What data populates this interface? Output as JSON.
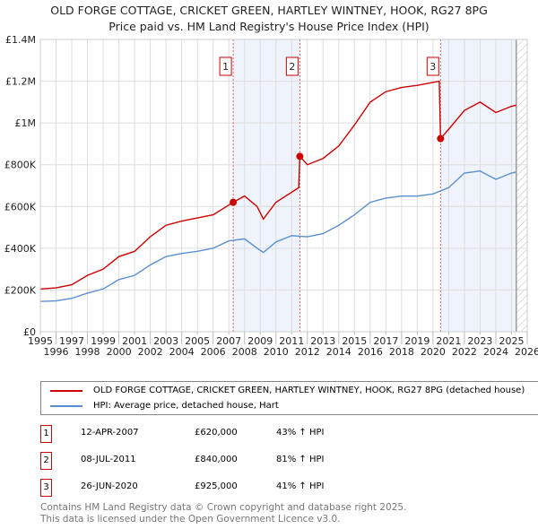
{
  "chart_data": {
    "type": "line",
    "title": "OLD FORGE COTTAGE, CRICKET GREEN, HARTLEY WINTNEY, HOOK, RG27 8PG",
    "subtitle": "Price paid vs. HM Land Registry's House Price Index (HPI)",
    "ylim": [
      0,
      1400000
    ],
    "xlim": [
      1995,
      2026
    ],
    "yticks": [
      {
        "v": 0,
        "label": "£0"
      },
      {
        "v": 200000,
        "label": "£200K"
      },
      {
        "v": 400000,
        "label": "£400K"
      },
      {
        "v": 600000,
        "label": "£600K"
      },
      {
        "v": 800000,
        "label": "£800K"
      },
      {
        "v": 1000000,
        "label": "£1M"
      },
      {
        "v": 1200000,
        "label": "£1.2M"
      },
      {
        "v": 1400000,
        "label": "£1.4M"
      }
    ],
    "xticks": [
      "1995",
      "1996",
      "1997",
      "1998",
      "1999",
      "2000",
      "2001",
      "2002",
      "2003",
      "2004",
      "2005",
      "2006",
      "2007",
      "2008",
      "2009",
      "2010",
      "2011",
      "2012",
      "2013",
      "2014",
      "2015",
      "2016",
      "2017",
      "2018",
      "2019",
      "2020",
      "2021",
      "2022",
      "2023",
      "2024",
      "2025",
      "2026"
    ],
    "series": [
      {
        "name": "OLD FORGE COTTAGE, CRICKET GREEN, HARTLEY WINTNEY, HOOK, RG27 8PG (detached house)",
        "color": "#cc0000",
        "x": [
          1995,
          1996,
          1997,
          1998,
          1999,
          2000,
          2001,
          2002,
          2003,
          2004,
          2005,
          2006,
          2007.28,
          2008,
          2008.8,
          2009.2,
          2010,
          2011.45,
          2011.52,
          2012,
          2013,
          2014,
          2015,
          2016,
          2017,
          2018,
          2019,
          2020.4,
          2020.48,
          2021,
          2022,
          2023,
          2024,
          2025,
          2025.3
        ],
        "y": [
          205000,
          210000,
          225000,
          270000,
          300000,
          360000,
          385000,
          455000,
          510000,
          530000,
          545000,
          560000,
          620000,
          650000,
          600000,
          540000,
          620000,
          690000,
          840000,
          800000,
          830000,
          890000,
          990000,
          1100000,
          1150000,
          1170000,
          1180000,
          1200000,
          925000,
          970000,
          1060000,
          1100000,
          1050000,
          1080000,
          1085000
        ]
      },
      {
        "name": "HPI: Average price, detached house, Hart",
        "color": "#5b8fd0",
        "x": [
          1995,
          1996,
          1997,
          1998,
          1999,
          2000,
          2001,
          2002,
          2003,
          2004,
          2005,
          2006,
          2007,
          2008,
          2008.8,
          2009.2,
          2010,
          2011,
          2012,
          2013,
          2014,
          2015,
          2016,
          2017,
          2018,
          2019,
          2020,
          2021,
          2022,
          2023,
          2024,
          2025,
          2025.3
        ],
        "y": [
          145000,
          148000,
          160000,
          185000,
          205000,
          250000,
          270000,
          320000,
          360000,
          375000,
          385000,
          400000,
          435000,
          445000,
          400000,
          380000,
          430000,
          460000,
          455000,
          470000,
          510000,
          560000,
          620000,
          640000,
          650000,
          650000,
          660000,
          690000,
          760000,
          770000,
          730000,
          760000,
          765000
        ]
      }
    ],
    "sales": [
      {
        "n": "1",
        "date": "12-APR-2007",
        "price": "£620,000",
        "hpi": "43% ↑ HPI",
        "x": 2007.28,
        "y": 620000
      },
      {
        "n": "2",
        "date": "08-JUL-2011",
        "price": "£840,000",
        "hpi": "81% ↑ HPI",
        "x": 2011.52,
        "y": 840000
      },
      {
        "n": "3",
        "date": "26-JUN-2020",
        "price": "£925,000",
        "hpi": "41% ↑ HPI",
        "x": 2020.48,
        "y": 925000
      }
    ],
    "data_end": 2025.3
  },
  "footer": {
    "line1": "Contains HM Land Registry data © Crown copyright and database right 2025.",
    "line2": "This data is licensed under the Open Government Licence v3.0."
  }
}
